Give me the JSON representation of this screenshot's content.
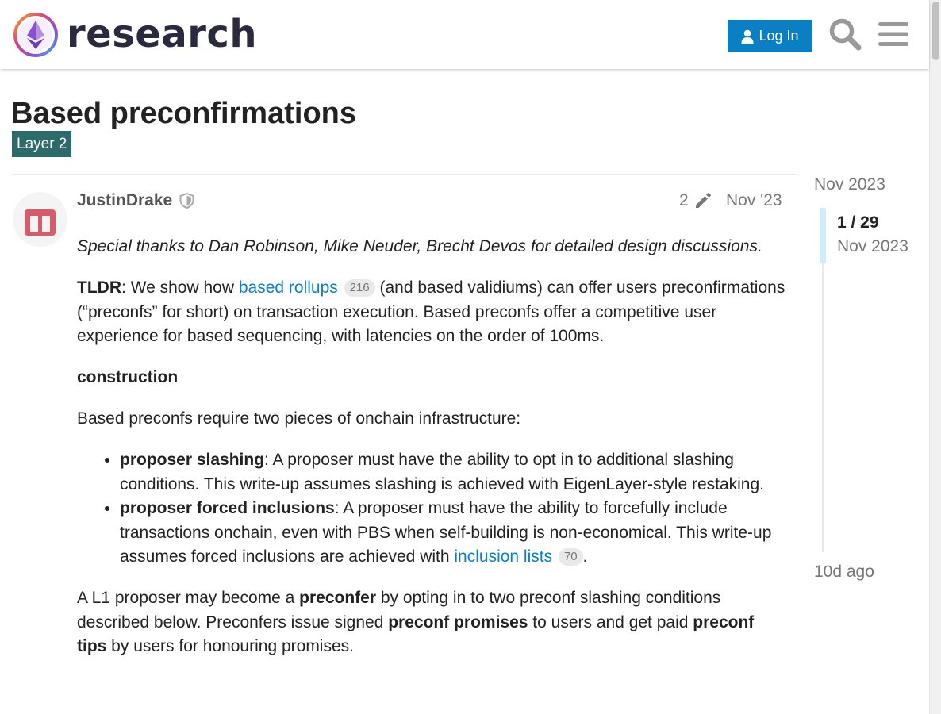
{
  "header": {
    "brand": "research",
    "login_label": "Log In",
    "colors": {
      "login_bg": "#0a7fc4",
      "brand_text": "#2a2a3e"
    }
  },
  "topic": {
    "title": "Based preconfirmations",
    "category": "Layer 2",
    "category_color": "#2d6a6a"
  },
  "post": {
    "username": "JustinDrake",
    "edit_count": "2",
    "date": "Nov '23",
    "thanks": "Special thanks to Dan Robinson, Mike Neuder, Brecht Devos for detailed design discussions.",
    "tldr_label": "TLDR",
    "tldr_pre": ": We show how ",
    "tldr_link": "based rollups",
    "tldr_link_badge": "216",
    "tldr_post": " (and based validiums) can offer users preconfirmations (“preconfs” for short) on transaction execution. Based preconfs offer a competitive user experience for based sequencing, with latencies on the order of 100ms.",
    "section_heading": "construction",
    "intro": "Based preconfs require two pieces of onchain infrastructure:",
    "list": [
      {
        "term": "proposer slashing",
        "text": ": A proposer must have the ability to opt in to additional slashing conditions. This write-up assumes slashing is achieved with EigenLayer-style restaking."
      },
      {
        "term": "proposer forced inclusions",
        "text": ": A proposer must have the ability to forcefully include transactions onchain, even with PBS when self-building is non-economical. This write-up assumes forced inclusions are achieved with ",
        "link": "inclusion lists",
        "badge": "70",
        "tail": "."
      }
    ],
    "p4_1": "A L1 proposer may become a ",
    "p4_b1": "preconfer",
    "p4_2": " by opting in to two preconf slashing conditions described below. Preconfers issue signed ",
    "p4_b2": "preconf promises",
    "p4_3": " to users and get paid ",
    "p4_b3": "preconf tips",
    "p4_4": " by users for honouring promises."
  },
  "timeline": {
    "start": "Nov 2023",
    "counter": "1 / 29",
    "counter_date": "Nov 2023",
    "end": "10d ago"
  }
}
